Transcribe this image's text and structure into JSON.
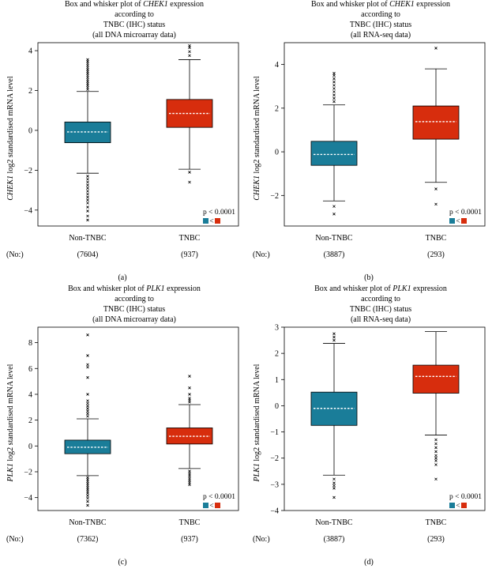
{
  "legend_colors": {
    "non_tnbc": "#1a7d99",
    "tnbc": "#d72d0d"
  },
  "legend_symbol": "<",
  "chart_data": [
    {
      "type": "box",
      "panel_letter": "(a)",
      "title_line1_prefix": "Box and whisker plot of ",
      "title_gene": "CHEK1",
      "title_line1_suffix": " expression",
      "title_line2": "according to",
      "title_line3": "TNBC (IHC) status",
      "title_line4": "(all DNA microarray data)",
      "ylabel_gene": "CHEK1",
      "ylabel_rest": " log2 standardised mRNA level",
      "ylim": [
        -4.8,
        4.4
      ],
      "yticks": [
        -4,
        -2,
        0,
        2,
        4
      ],
      "categories": [
        "Non-TNBC",
        "TNBC"
      ],
      "counts_label": "(No:)",
      "counts": [
        "(7604)",
        "(937)"
      ],
      "p_value": "p < 0.0001",
      "boxes": [
        {
          "name": "Non-TNBC",
          "color": "#1a7d99",
          "q1": -0.62,
          "median": -0.08,
          "q3": 0.42,
          "whisker_low": -2.15,
          "whisker_high": 1.95,
          "outliers": [
            2.05,
            2.15,
            2.25,
            2.35,
            2.45,
            2.55,
            2.65,
            2.75,
            2.85,
            2.95,
            3.05,
            3.15,
            3.25,
            3.35,
            3.45,
            3.55,
            -2.3,
            -2.45,
            -2.6,
            -2.75,
            -2.9,
            -3.05,
            -3.2,
            -3.35,
            -3.5,
            -3.65,
            -3.85,
            -4.05,
            -4.3,
            -4.5
          ]
        },
        {
          "name": "TNBC",
          "color": "#d72d0d",
          "q1": 0.15,
          "median": 0.85,
          "q3": 1.55,
          "whisker_low": -1.95,
          "whisker_high": 3.55,
          "outliers": [
            3.75,
            3.95,
            4.15,
            4.25,
            -2.1,
            -2.6
          ]
        }
      ]
    },
    {
      "type": "box",
      "panel_letter": "(b)",
      "title_line1_prefix": "Box and whisker plot of ",
      "title_gene": "CHEK1",
      "title_line1_suffix": " expression",
      "title_line2": "according to",
      "title_line3": "TNBC (IHC) status",
      "title_line4": "(all RNA-seq data)",
      "ylabel_gene": "CHEK1",
      "ylabel_rest": " log2 standardised mRNA level",
      "ylim": [
        -3.4,
        5.0
      ],
      "yticks": [
        -2,
        0,
        2,
        4
      ],
      "categories": [
        "Non-TNBC",
        "TNBC"
      ],
      "counts_label": "(No:)",
      "counts": [
        "(3887)",
        "(293)"
      ],
      "p_value": "p < 0.0001",
      "boxes": [
        {
          "name": "Non-TNBC",
          "color": "#1a7d99",
          "q1": -0.62,
          "median": -0.12,
          "q3": 0.48,
          "whisker_low": -2.25,
          "whisker_high": 2.15,
          "outliers": [
            2.3,
            2.45,
            2.6,
            2.75,
            2.9,
            3.05,
            3.2,
            3.35,
            3.5,
            3.6,
            -2.5,
            -2.85
          ]
        },
        {
          "name": "TNBC",
          "color": "#d72d0d",
          "q1": 0.58,
          "median": 1.38,
          "q3": 2.1,
          "whisker_low": -1.4,
          "whisker_high": 3.8,
          "outliers": [
            4.75,
            -1.7,
            -2.4
          ]
        }
      ]
    },
    {
      "type": "box",
      "panel_letter": "(c)",
      "title_line1_prefix": "Box and whisker plot of ",
      "title_gene": "PLK1",
      "title_line1_suffix": " expression",
      "title_line2": "according to",
      "title_line3": "TNBC (IHC) status",
      "title_line4": "(all DNA microarray data)",
      "ylabel_gene": "PLK1",
      "ylabel_rest": " log2 standardised mRNA level",
      "ylim": [
        -5.0,
        9.2
      ],
      "yticks": [
        -4,
        -2,
        0,
        2,
        4,
        6,
        8
      ],
      "categories": [
        "Non-TNBC",
        "TNBC"
      ],
      "counts_label": "(No:)",
      "counts": [
        "(7362)",
        "(937)"
      ],
      "p_value": "p < 0.0001",
      "boxes": [
        {
          "name": "Non-TNBC",
          "color": "#1a7d99",
          "q1": -0.6,
          "median": -0.1,
          "q3": 0.45,
          "whisker_low": -2.3,
          "whisker_high": 2.1,
          "outliers": [
            2.3,
            2.5,
            2.7,
            2.9,
            3.1,
            3.3,
            3.5,
            4.0,
            5.3,
            6.1,
            6.3,
            7.0,
            8.6,
            -2.45,
            -2.6,
            -2.75,
            -2.9,
            -3.05,
            -3.2,
            -3.35,
            -3.5,
            -3.65,
            -3.85,
            -4.05,
            -4.3,
            -4.6
          ]
        },
        {
          "name": "TNBC",
          "color": "#d72d0d",
          "q1": 0.15,
          "median": 0.75,
          "q3": 1.4,
          "whisker_low": -1.75,
          "whisker_high": 3.2,
          "outliers": [
            3.4,
            3.55,
            3.7,
            4.0,
            4.5,
            5.4,
            -1.95,
            -2.1,
            -2.25,
            -2.4,
            -2.55,
            -2.7,
            -2.85,
            -3.0
          ]
        }
      ]
    },
    {
      "type": "box",
      "panel_letter": "(d)",
      "title_line1_prefix": "Box and whisker plot of ",
      "title_gene": "PLK1",
      "title_line1_suffix": " expression",
      "title_line2": "according to",
      "title_line3": "TNBC (IHC) status",
      "title_line4": "(all RNA-seq data)",
      "ylabel_gene": "PLK1",
      "ylabel_rest": " log2 standardised mRNA level",
      "ylim": [
        -4.0,
        3.0
      ],
      "yticks": [
        -4,
        -3,
        -2,
        -1,
        0,
        1,
        2,
        3
      ],
      "categories": [
        "Non-TNBC",
        "TNBC"
      ],
      "counts_label": "(No:)",
      "counts": [
        "(3887)",
        "(293)"
      ],
      "p_value": "p < 0.0001",
      "boxes": [
        {
          "name": "Non-TNBC",
          "color": "#1a7d99",
          "q1": -0.75,
          "median": -0.1,
          "q3": 0.52,
          "whisker_low": -2.65,
          "whisker_high": 2.38,
          "outliers": [
            2.5,
            2.62,
            2.75,
            -2.8,
            -2.95,
            -3.05,
            -3.15,
            -3.5
          ]
        },
        {
          "name": "TNBC",
          "color": "#d72d0d",
          "q1": 0.48,
          "median": 1.12,
          "q3": 1.55,
          "whisker_low": -1.12,
          "whisker_high": 2.83,
          "outliers": [
            -1.3,
            -1.45,
            -1.6,
            -1.75,
            -1.9,
            -2.0,
            -2.1,
            -2.25,
            -2.8
          ]
        }
      ]
    }
  ]
}
